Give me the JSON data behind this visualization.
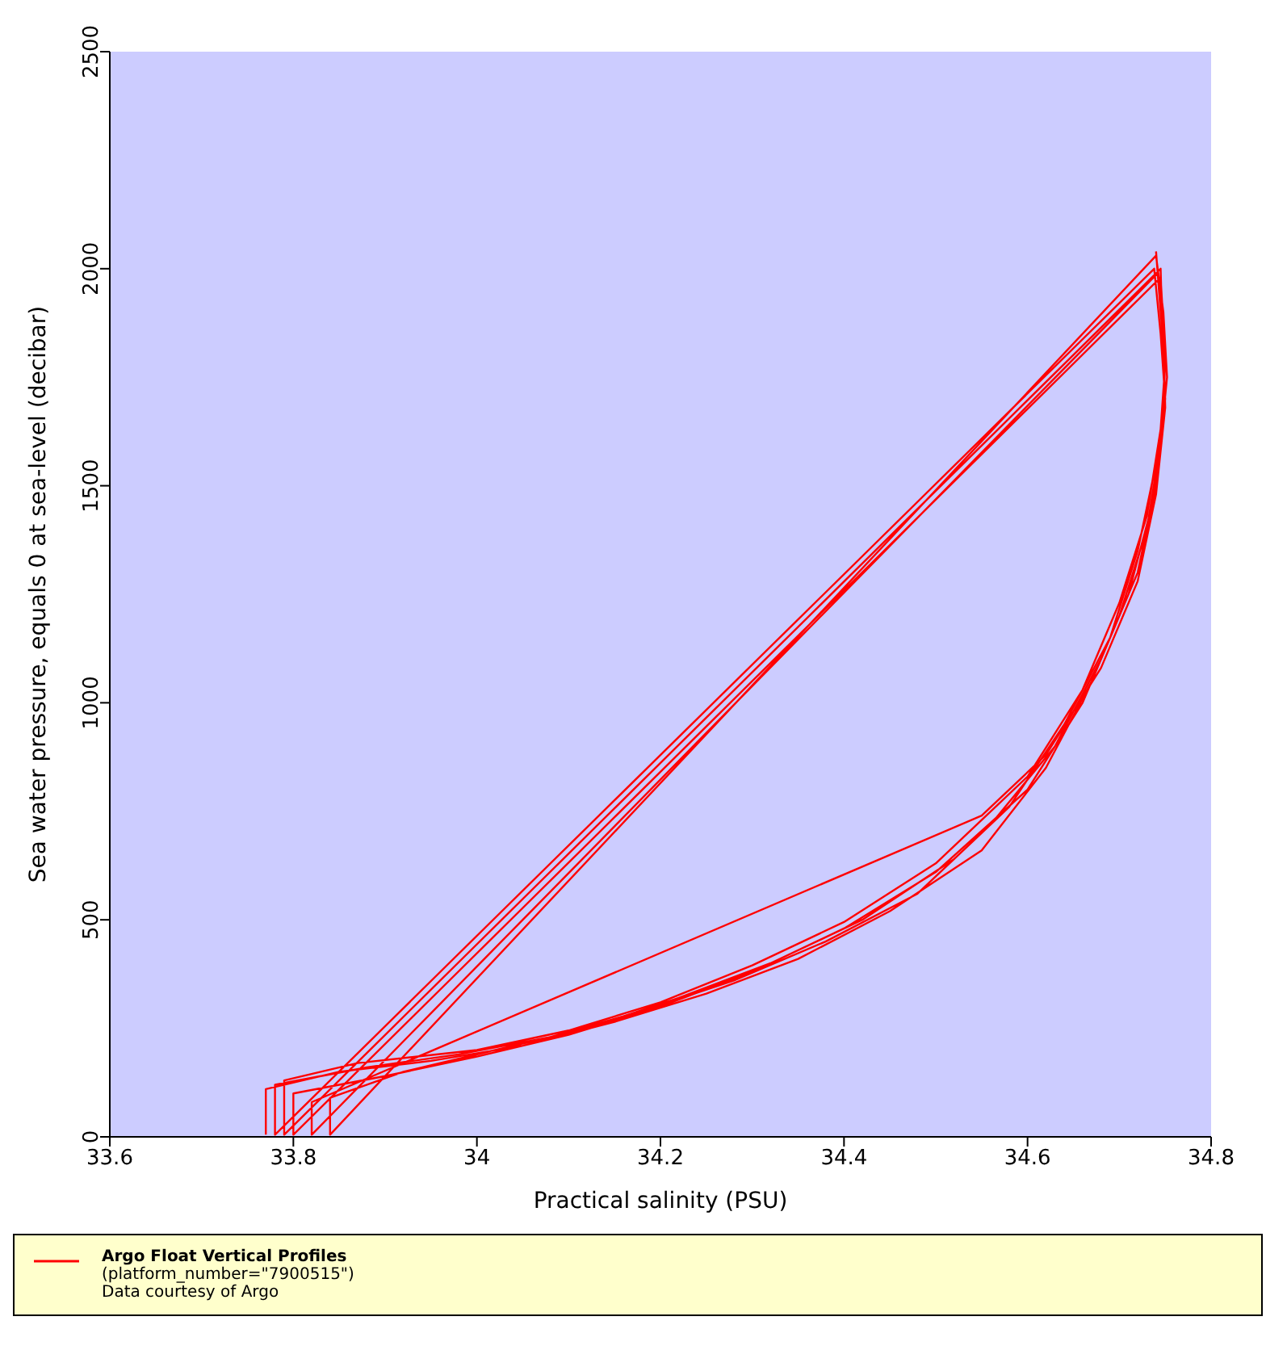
{
  "chart_data": {
    "type": "line",
    "xlabel": "Practical salinity (PSU)",
    "ylabel": "Sea water pressure, equals 0 at sea-level (decibar)",
    "xlim": [
      33.6,
      34.8
    ],
    "xticks": [
      33.6,
      33.8,
      34,
      34.2,
      34.4,
      34.6,
      34.8
    ],
    "ylim": [
      0,
      2500
    ],
    "yticks": [
      0,
      500,
      1000,
      1500,
      2000,
      2500
    ],
    "legend": "bottom",
    "marker": "none",
    "line_style": "solid",
    "annotations": [
      "(platform_number=\"7900515\")",
      "Data courtesy of Argo"
    ],
    "series": [
      {
        "name": "Argo Float Vertical Profiles",
        "color": "#ff0000",
        "x": [
          33.77,
          33.77,
          33.85,
          33.95,
          34.05,
          34.15,
          34.25,
          34.35,
          34.45,
          34.55,
          34.62,
          34.67,
          34.71,
          34.735,
          34.748,
          34.75,
          34.745,
          33.8,
          33.8,
          33.9,
          34.0,
          34.1,
          34.2,
          34.3,
          34.4,
          34.5,
          34.6,
          34.66,
          34.7,
          34.73,
          34.745,
          34.752,
          34.748,
          34.74,
          33.84,
          33.84,
          33.92,
          34.02,
          34.12,
          34.22,
          34.32,
          34.42,
          34.52,
          34.58,
          34.64,
          34.69,
          34.72,
          34.74,
          34.75,
          34.745,
          34.738,
          33.78,
          33.78,
          33.88,
          33.98,
          34.08,
          34.18,
          34.28,
          34.38,
          34.48,
          34.56,
          34.63,
          34.68,
          34.72,
          34.74,
          34.75,
          34.748,
          34.742,
          33.82,
          33.82,
          34.55,
          34.62,
          34.68,
          34.72,
          34.74,
          34.75,
          34.747,
          34.745,
          33.79,
          33.79,
          33.87,
          34.0,
          34.1,
          34.2,
          34.3,
          34.4,
          34.5,
          34.6,
          34.66,
          34.7,
          34.73,
          34.745,
          34.75,
          34.745,
          34.74
        ],
        "values": [
          5,
          110,
          150,
          175,
          210,
          265,
          330,
          410,
          520,
          660,
          850,
          1050,
          1250,
          1450,
          1650,
          1800,
          1980,
          5,
          100,
          140,
          185,
          235,
          300,
          380,
          480,
          610,
          800,
          1000,
          1200,
          1400,
          1600,
          1750,
          1900,
          2030,
          5,
          90,
          150,
          200,
          250,
          320,
          400,
          500,
          640,
          760,
          950,
          1150,
          1350,
          1550,
          1700,
          1850,
          2000,
          5,
          120,
          160,
          190,
          230,
          290,
          360,
          450,
          560,
          720,
          900,
          1100,
          1300,
          1500,
          1680,
          1850,
          1990,
          5,
          80,
          740,
          880,
          1080,
          1280,
          1480,
          1680,
          1850,
          2000,
          5,
          130,
          170,
          200,
          245,
          310,
          395,
          495,
          630,
          830,
          1030,
          1230,
          1430,
          1630,
          1780,
          1900,
          2040
        ]
      }
    ]
  }
}
